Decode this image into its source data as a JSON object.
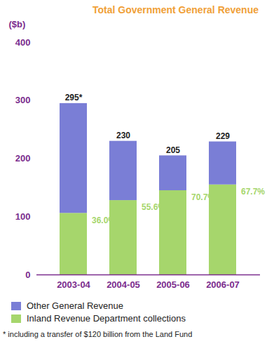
{
  "chart_data": {
    "type": "bar",
    "title": "Total Government General Revenue",
    "y_label": "($b)",
    "categories": [
      "2003-04",
      "2004-05",
      "2005-06",
      "2006-07"
    ],
    "series": [
      {
        "name": "Other General Revenue",
        "color": "#7a7ed6",
        "values": [
          189,
          102,
          60,
          74
        ]
      },
      {
        "name": "Inland Revenue Department collections",
        "color": "#a6d66c",
        "values": [
          106,
          128,
          145,
          155
        ],
        "share_labels": [
          "36.0%",
          "55.6%",
          "70.7%",
          "67.7%"
        ]
      }
    ],
    "totals": [
      295,
      230,
      205,
      229
    ],
    "total_labels": [
      "295*",
      "230",
      "205",
      "229"
    ],
    "note": "* including a transfer of $120 billion from the Land Fund",
    "stacked": true,
    "ylim": [
      0,
      400
    ],
    "yticks": [
      0,
      100,
      200,
      300,
      400
    ],
    "grid": false
  }
}
